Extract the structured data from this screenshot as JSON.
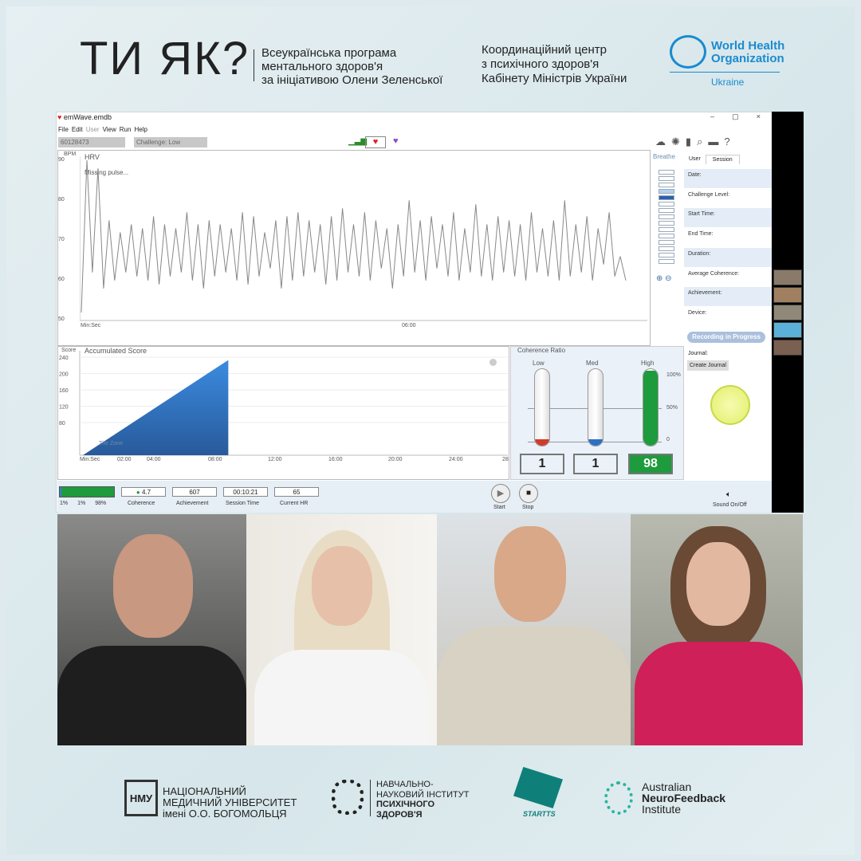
{
  "header": {
    "logo_text": "ТИ ЯК?",
    "program": [
      "Всеукраїнська програма",
      "ментального здоров'я",
      "за ініціативою Олени Зеленської"
    ],
    "center": [
      "Координаційний центр",
      "з психічного здоров'я",
      "Кабінету Міністрів України"
    ],
    "who": {
      "line1": "World Health",
      "line2": "Organization",
      "country": "Ukraine"
    }
  },
  "app": {
    "title": "emWave.emdb",
    "window_controls": [
      "–",
      "▢",
      "×"
    ],
    "menu": [
      "File",
      "Edit",
      "User",
      "View",
      "Run",
      "Help"
    ],
    "user_id": "60128473",
    "challenge": "Challenge: Low",
    "hrv": {
      "title": "HRV",
      "status": "Missing pulse...",
      "unit": "BPM",
      "yticks": [
        90,
        80,
        70,
        60,
        50
      ],
      "xlabel": "Min:Sec",
      "xtick": "06:00",
      "series": [
        52,
        90,
        62,
        88,
        58,
        75,
        60,
        72,
        62,
        74,
        61,
        73,
        60,
        76,
        59,
        74,
        61,
        73,
        62,
        77,
        60,
        74,
        58,
        75,
        61,
        74,
        62,
        73,
        60,
        77,
        59,
        76,
        61,
        72,
        63,
        75,
        58,
        76,
        60,
        77,
        61,
        75,
        62,
        74,
        59,
        76,
        60,
        78,
        62,
        74,
        61,
        77,
        60,
        75,
        63,
        73,
        58,
        74,
        61,
        80,
        62,
        75,
        60,
        76,
        63,
        74,
        61,
        77,
        60,
        73,
        62,
        79,
        61,
        74,
        60,
        76,
        62,
        75,
        61,
        74,
        60,
        77,
        62,
        73,
        61,
        75,
        60,
        80,
        61,
        74,
        62,
        76,
        60,
        73,
        64,
        77,
        61,
        66,
        60
      ]
    },
    "breathe_label": "Breathe",
    "session_tabs": [
      "User",
      "Session"
    ],
    "session_fields": [
      "Date:",
      "Challenge Level:",
      "Start Time:",
      "End Time:",
      "Duration:",
      "Average Coherence:",
      "Achievement:",
      "Device:"
    ],
    "recording": "Recording in Progress",
    "journal_label": "Journal:",
    "create_journal": "Create Journal",
    "score": {
      "title": "Accumulated Score",
      "unit": "Score",
      "yticks": [
        240,
        200,
        160,
        120,
        80
      ],
      "xticks": [
        "Min:Sec",
        "02:00",
        "04:00",
        "08:00",
        "12:00",
        "16:00",
        "20:00",
        "24:00",
        "28"
      ],
      "zone_label": "The Zone",
      "end_minute": 9.7,
      "end_score": 233
    },
    "coherence": {
      "title": "Coherence Ratio",
      "levels": [
        {
          "label": "Low",
          "value": "1",
          "pct": 1,
          "color": "#d23b2a"
        },
        {
          "label": "Med",
          "value": "1",
          "pct": 1,
          "color": "#2d6fc4"
        },
        {
          "label": "High",
          "value": "98",
          "pct": 98,
          "color": "#1e9b3c"
        }
      ],
      "ticks": [
        "100%",
        "50%",
        "0"
      ]
    },
    "bottom": {
      "ratio_pcts": [
        "1%",
        "1%",
        "98%"
      ],
      "coherence": "4.7",
      "coherence_label": "Coherence",
      "achievement": "607",
      "achievement_label": "Achievement",
      "session_time": "00:10:21",
      "session_time_label": "Session Time",
      "hr": "65",
      "hr_label": "Current HR",
      "start": "Start",
      "stop": "Stop",
      "sound": "Sound On/Off"
    }
  },
  "footer": {
    "nmu": [
      "НАЦІОНАЛЬНИЙ",
      "МЕДИЧНИЙ УНІВЕРСИТЕТ",
      "імені О.О. БОГОМОЛЬЦЯ"
    ],
    "nmu_logo": "НМУ",
    "inst": [
      "НАВЧАЛЬНО-",
      "НАУКОВИЙ ІНСТИТУТ",
      "ПСИХІЧНОГО",
      "ЗДОРОВ'Я"
    ],
    "startts": "STARTTS",
    "anfi": [
      "Australian",
      "NeuroFeedback",
      "Institute"
    ]
  }
}
